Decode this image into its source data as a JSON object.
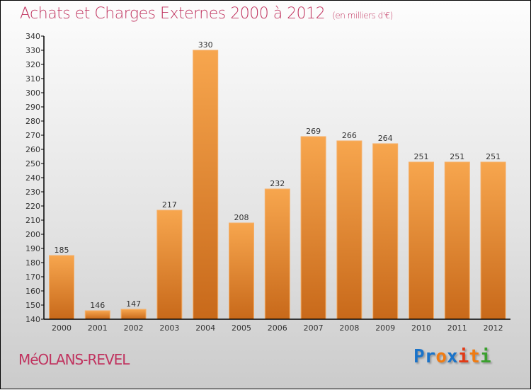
{
  "chart_data": {
    "type": "bar",
    "title": "Achats et Charges Externes 2000 à 2012",
    "subtitle": "(en milliers d'€)",
    "categories": [
      "2000",
      "2001",
      "2002",
      "2003",
      "2004",
      "2005",
      "2006",
      "2007",
      "2008",
      "2009",
      "2010",
      "2011",
      "2012"
    ],
    "values": [
      185,
      146,
      147,
      217,
      330,
      208,
      232,
      269,
      266,
      264,
      251,
      251,
      251
    ],
    "ylim": [
      140,
      340
    ],
    "ytick_step": 10,
    "xlabel": "",
    "ylabel": "",
    "bar_color": "#f0953a"
  },
  "commune": "MéOLANS-REVEL",
  "logo": {
    "text": "Proxiti",
    "colors": [
      "#1a73c9",
      "#1a73c9",
      "#f07b12",
      "#1a73c9",
      "#e23a16",
      "#f07b12",
      "#3aa02e"
    ]
  }
}
